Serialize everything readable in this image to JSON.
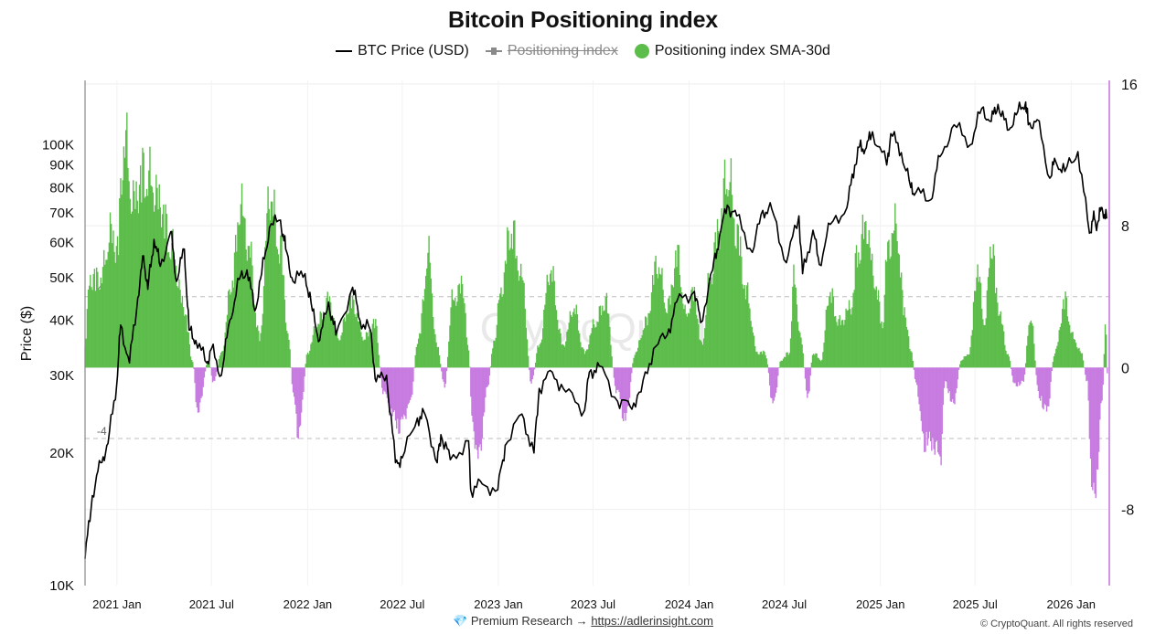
{
  "chart_data": {
    "type": "bar",
    "title": "Bitcoin Positioning index",
    "legend": [
      {
        "name": "BTC Price (USD)",
        "style": "line",
        "color": "#000000",
        "visible": true
      },
      {
        "name": "Positioning index",
        "style": "line-marker",
        "color": "#8a8a8a",
        "visible": false
      },
      {
        "name": "Positioning index SMA-30d",
        "style": "dot",
        "color": "#5cbd4a",
        "visible": true
      }
    ],
    "legend_placement": "top-center",
    "ylabel_left": "Price ($)",
    "y_left_scale": "log",
    "y_left_range": [
      10000,
      140000
    ],
    "y_left_ticks": [
      "100K",
      "90K",
      "80K",
      "70K",
      "60K",
      "50K",
      "40K",
      "30K",
      "20K",
      "10K"
    ],
    "y_right_range": [
      -12.3,
      16.2
    ],
    "y_right_ticks": [
      "16",
      "8",
      "0",
      "-8"
    ],
    "x_range": [
      "2020-11-01",
      "2026-03-15"
    ],
    "x_ticks": [
      "2021 Jan",
      "2021 Jul",
      "2022 Jan",
      "2022 Jul",
      "2023 Jan",
      "2023 Jul",
      "2024 Jan",
      "2024 Jul",
      "2025 Jan",
      "2025 Jul",
      "2026 Jan"
    ],
    "reference_lines": [
      {
        "value": 4,
        "label": "4"
      },
      {
        "value": -4,
        "label": "-4"
      },
      {
        "value": 0,
        "label": "0"
      }
    ],
    "positive_color": "#5cbd4a",
    "negative_color": "#c77be0",
    "grid": true,
    "watermark": "CryptoQuant",
    "btc_price": [
      [
        "2020-11-01",
        11500
      ],
      [
        "2020-11-15",
        16000
      ],
      [
        "2020-12-01",
        19000
      ],
      [
        "2020-12-15",
        21000
      ],
      [
        "2021-01-01",
        29000
      ],
      [
        "2021-01-08",
        39000
      ],
      [
        "2021-01-25",
        32000
      ],
      [
        "2021-02-10",
        45000
      ],
      [
        "2021-02-21",
        56000
      ],
      [
        "2021-03-01",
        47000
      ],
      [
        "2021-03-13",
        61000
      ],
      [
        "2021-03-25",
        53000
      ],
      [
        "2021-04-14",
        63500
      ],
      [
        "2021-04-25",
        49000
      ],
      [
        "2021-05-10",
        58000
      ],
      [
        "2021-05-19",
        38000
      ],
      [
        "2021-06-01",
        36000
      ],
      [
        "2021-06-22",
        32000
      ],
      [
        "2021-07-01",
        34500
      ],
      [
        "2021-07-20",
        30000
      ],
      [
        "2021-08-05",
        40000
      ],
      [
        "2021-08-23",
        49500
      ],
      [
        "2021-09-07",
        52000
      ],
      [
        "2021-09-22",
        42000
      ],
      [
        "2021-10-05",
        51000
      ],
      [
        "2021-10-20",
        65000
      ],
      [
        "2021-11-10",
        67500
      ],
      [
        "2021-11-20",
        58000
      ],
      [
        "2021-12-04",
        49000
      ],
      [
        "2021-12-27",
        51000
      ],
      [
        "2022-01-10",
        42000
      ],
      [
        "2022-01-24",
        36000
      ],
      [
        "2022-02-10",
        44000
      ],
      [
        "2022-02-24",
        37000
      ],
      [
        "2022-03-28",
        47500
      ],
      [
        "2022-04-11",
        40000
      ],
      [
        "2022-05-01",
        38000
      ],
      [
        "2022-05-12",
        29000
      ],
      [
        "2022-06-01",
        30000
      ],
      [
        "2022-06-18",
        19000
      ],
      [
        "2022-07-01",
        19500
      ],
      [
        "2022-07-30",
        24000
      ],
      [
        "2022-08-14",
        24400
      ],
      [
        "2022-09-06",
        19000
      ],
      [
        "2022-09-13",
        22000
      ],
      [
        "2022-10-01",
        19300
      ],
      [
        "2022-11-05",
        21300
      ],
      [
        "2022-11-09",
        16500
      ],
      [
        "2022-12-01",
        17000
      ],
      [
        "2022-12-31",
        16500
      ],
      [
        "2023-01-14",
        20800
      ],
      [
        "2023-02-15",
        24500
      ],
      [
        "2023-03-10",
        20000
      ],
      [
        "2023-03-20",
        28000
      ],
      [
        "2023-04-14",
        30500
      ],
      [
        "2023-05-10",
        27500
      ],
      [
        "2023-06-15",
        25000
      ],
      [
        "2023-06-24",
        30500
      ],
      [
        "2023-07-13",
        31500
      ],
      [
        "2023-08-17",
        26200
      ],
      [
        "2023-09-10",
        25500
      ],
      [
        "2023-10-01",
        27500
      ],
      [
        "2023-10-25",
        34500
      ],
      [
        "2023-11-20",
        37000
      ],
      [
        "2023-12-08",
        44000
      ],
      [
        "2024-01-11",
        46500
      ],
      [
        "2024-01-23",
        39500
      ],
      [
        "2024-02-15",
        52000
      ],
      [
        "2024-02-28",
        62000
      ],
      [
        "2024-03-14",
        73000
      ],
      [
        "2024-04-01",
        69000
      ],
      [
        "2024-05-01",
        57000
      ],
      [
        "2024-05-21",
        71000
      ],
      [
        "2024-06-07",
        71500
      ],
      [
        "2024-07-05",
        54000
      ],
      [
        "2024-07-29",
        69000
      ],
      [
        "2024-08-05",
        51000
      ],
      [
        "2024-08-25",
        64000
      ],
      [
        "2024-09-06",
        53500
      ],
      [
        "2024-09-27",
        66000
      ],
      [
        "2024-10-29",
        72000
      ],
      [
        "2024-11-13",
        90000
      ],
      [
        "2024-11-22",
        99000
      ],
      [
        "2024-12-05",
        98500
      ],
      [
        "2024-12-17",
        107000
      ],
      [
        "2025-01-13",
        90000
      ],
      [
        "2025-01-21",
        106000
      ],
      [
        "2025-02-10",
        96000
      ],
      [
        "2025-02-28",
        80000
      ],
      [
        "2025-03-10",
        78000
      ],
      [
        "2025-04-07",
        75000
      ],
      [
        "2025-04-25",
        94000
      ],
      [
        "2025-05-22",
        111000
      ],
      [
        "2025-06-22",
        100000
      ],
      [
        "2025-07-14",
        121000
      ],
      [
        "2025-08-01",
        113000
      ],
      [
        "2025-08-14",
        123500
      ],
      [
        "2025-09-01",
        108000
      ],
      [
        "2025-09-18",
        117000
      ],
      [
        "2025-10-06",
        125000
      ],
      [
        "2025-10-11",
        111000
      ],
      [
        "2025-10-28",
        114000
      ],
      [
        "2025-11-21",
        84000
      ],
      [
        "2025-12-02",
        92000
      ],
      [
        "2025-12-20",
        87000
      ],
      [
        "2026-01-14",
        96500
      ],
      [
        "2026-02-05",
        63000
      ],
      [
        "2026-02-12",
        68000
      ],
      [
        "2026-02-20",
        66000
      ],
      [
        "2026-03-01",
        72000
      ],
      [
        "2026-03-10",
        68000
      ]
    ],
    "positioning_index_sma30d": [
      [
        "2020-11-01",
        1.5
      ],
      [
        "2020-11-10",
        6
      ],
      [
        "2020-12-01",
        6
      ],
      [
        "2020-12-20",
        9
      ],
      [
        "2021-01-01",
        8
      ],
      [
        "2021-01-15",
        15.3
      ],
      [
        "2021-02-01",
        11
      ],
      [
        "2021-02-20",
        13
      ],
      [
        "2021-03-05",
        12.5
      ],
      [
        "2021-03-25",
        11
      ],
      [
        "2021-04-15",
        8
      ],
      [
        "2021-05-10",
        4
      ],
      [
        "2021-05-25",
        0.5
      ],
      [
        "2021-06-05",
        -3
      ],
      [
        "2021-06-25",
        0.5
      ],
      [
        "2021-07-05",
        -1
      ],
      [
        "2021-07-20",
        1
      ],
      [
        "2021-08-10",
        6
      ],
      [
        "2021-08-25",
        11
      ],
      [
        "2021-09-10",
        8
      ],
      [
        "2021-10-01",
        2
      ],
      [
        "2021-10-20",
        11.5
      ],
      [
        "2021-11-10",
        8
      ],
      [
        "2021-11-25",
        2
      ],
      [
        "2021-12-05",
        -2
      ],
      [
        "2021-12-15",
        -4.5
      ],
      [
        "2022-01-01",
        1
      ],
      [
        "2022-01-20",
        3
      ],
      [
        "2022-02-10",
        4.5
      ],
      [
        "2022-03-01",
        2
      ],
      [
        "2022-03-25",
        4.5
      ],
      [
        "2022-04-20",
        2
      ],
      [
        "2022-05-10",
        3
      ],
      [
        "2022-05-25",
        -1.5
      ],
      [
        "2022-06-10",
        -3
      ],
      [
        "2022-06-25",
        -4
      ],
      [
        "2022-07-15",
        -2.5
      ],
      [
        "2022-08-01",
        2
      ],
      [
        "2022-08-20",
        7.5
      ],
      [
        "2022-09-05",
        1.5
      ],
      [
        "2022-09-20",
        -1.2
      ],
      [
        "2022-10-05",
        4.5
      ],
      [
        "2022-10-25",
        5.5
      ],
      [
        "2022-11-05",
        1
      ],
      [
        "2022-11-12",
        -4
      ],
      [
        "2022-11-25",
        -6
      ],
      [
        "2022-12-10",
        -1.5
      ],
      [
        "2022-12-25",
        2
      ],
      [
        "2023-01-05",
        5
      ],
      [
        "2023-01-25",
        9.3
      ],
      [
        "2023-02-15",
        6
      ],
      [
        "2023-03-05",
        -1
      ],
      [
        "2023-03-20",
        1.5
      ],
      [
        "2023-04-10",
        6.5
      ],
      [
        "2023-05-05",
        1.5
      ],
      [
        "2023-05-25",
        4
      ],
      [
        "2023-06-15",
        1
      ],
      [
        "2023-07-05",
        3
      ],
      [
        "2023-07-25",
        4.5
      ],
      [
        "2023-08-15",
        -1.5
      ],
      [
        "2023-09-01",
        -3.5
      ],
      [
        "2023-09-20",
        1
      ],
      [
        "2023-10-10",
        3
      ],
      [
        "2023-11-01",
        7
      ],
      [
        "2023-11-20",
        4
      ],
      [
        "2023-12-10",
        7.5
      ],
      [
        "2023-12-25",
        3.5
      ],
      [
        "2024-01-10",
        5
      ],
      [
        "2024-01-25",
        1.5
      ],
      [
        "2024-02-10",
        6
      ],
      [
        "2024-02-25",
        9
      ],
      [
        "2024-03-15",
        13
      ],
      [
        "2024-04-01",
        9
      ],
      [
        "2024-04-20",
        5
      ],
      [
        "2024-05-10",
        1
      ],
      [
        "2024-05-25",
        1
      ],
      [
        "2024-06-10",
        -2.5
      ],
      [
        "2024-06-25",
        0.5
      ],
      [
        "2024-07-10",
        1
      ],
      [
        "2024-07-20",
        6
      ],
      [
        "2024-08-01",
        2
      ],
      [
        "2024-08-15",
        -2
      ],
      [
        "2024-08-25",
        1
      ],
      [
        "2024-09-10",
        0.5
      ],
      [
        "2024-09-25",
        5
      ],
      [
        "2024-10-15",
        3
      ],
      [
        "2024-11-05",
        4
      ],
      [
        "2024-11-20",
        8
      ],
      [
        "2024-12-05",
        9.5
      ],
      [
        "2024-12-20",
        6
      ],
      [
        "2025-01-05",
        3
      ],
      [
        "2025-01-15",
        8
      ],
      [
        "2025-02-01",
        9.5
      ],
      [
        "2025-02-15",
        4
      ],
      [
        "2025-03-01",
        1
      ],
      [
        "2025-03-10",
        -1
      ],
      [
        "2025-03-25",
        -5
      ],
      [
        "2025-04-10",
        -5
      ],
      [
        "2025-04-25",
        -6
      ],
      [
        "2025-05-05",
        -1
      ],
      [
        "2025-05-20",
        -2.5
      ],
      [
        "2025-06-05",
        0.5
      ],
      [
        "2025-06-20",
        1
      ],
      [
        "2025-07-05",
        6.5
      ],
      [
        "2025-07-20",
        3
      ],
      [
        "2025-08-01",
        8.5
      ],
      [
        "2025-08-15",
        4
      ],
      [
        "2025-09-01",
        1
      ],
      [
        "2025-09-15",
        -1.2
      ],
      [
        "2025-10-01",
        -1
      ],
      [
        "2025-10-15",
        3.5
      ],
      [
        "2025-11-01",
        -2
      ],
      [
        "2025-11-15",
        -3
      ],
      [
        "2025-12-01",
        1
      ],
      [
        "2025-12-20",
        4.5
      ],
      [
        "2026-01-05",
        2
      ],
      [
        "2026-01-20",
        1
      ],
      [
        "2026-02-01",
        -1
      ],
      [
        "2026-02-10",
        -9
      ],
      [
        "2026-02-20",
        -7
      ],
      [
        "2026-03-01",
        -2
      ],
      [
        "2026-03-08",
        2.8
      ],
      [
        "2026-03-12",
        -1
      ]
    ]
  },
  "footer": {
    "gem_icon": "gem-icon",
    "text": "Premium Research →",
    "link": "https://adlerinsight.com"
  },
  "copyright": "© CryptoQuant. All rights reserved"
}
